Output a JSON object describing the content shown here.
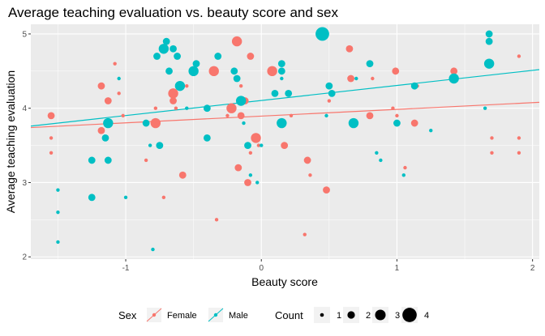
{
  "chart_data": {
    "type": "scatter",
    "title": "Average teaching evaluation vs. beauty score and sex",
    "xlabel": "Beauty score",
    "ylabel": "Average teaching evaluation",
    "xlim": [
      -1.7,
      2.05
    ],
    "ylim": [
      1.97,
      5.13
    ],
    "xticks": [
      -1,
      0,
      1,
      2
    ],
    "xtick_labels": [
      "-1",
      "0",
      "1",
      "2"
    ],
    "yticks": [
      2,
      3,
      4,
      5
    ],
    "ytick_labels": [
      "2",
      "3",
      "4",
      "5"
    ],
    "grid": true,
    "background": "#ebebeb",
    "legend": {
      "position": "bottom",
      "sex_title": "Sex",
      "sex_entries": [
        {
          "label": "Female",
          "color": "#F8766D"
        },
        {
          "label": "Male",
          "color": "#00BFC4"
        }
      ],
      "count_title": "Count",
      "count_entries": [
        {
          "label": "1",
          "count": 1
        },
        {
          "label": "2",
          "count": 2
        },
        {
          "label": "3",
          "count": 3
        },
        {
          "label": "4",
          "count": 4
        }
      ]
    },
    "series": [
      {
        "name": "Female",
        "color": "#F8766D",
        "trend": {
          "x": [
            -1.7,
            2.05
          ],
          "y": [
            3.74,
            4.08
          ]
        },
        "points": [
          {
            "x": -1.55,
            "y": 3.9,
            "count": 2
          },
          {
            "x": -1.55,
            "y": 3.6,
            "count": 1
          },
          {
            "x": -1.55,
            "y": 3.4,
            "count": 1
          },
          {
            "x": -1.18,
            "y": 4.3,
            "count": 2
          },
          {
            "x": -1.18,
            "y": 3.7,
            "count": 2
          },
          {
            "x": -1.13,
            "y": 4.1,
            "count": 2
          },
          {
            "x": -1.08,
            "y": 4.6,
            "count": 1
          },
          {
            "x": -1.05,
            "y": 4.2,
            "count": 1
          },
          {
            "x": -1.02,
            "y": 3.9,
            "count": 1
          },
          {
            "x": -0.85,
            "y": 3.3,
            "count": 1
          },
          {
            "x": -0.78,
            "y": 3.8,
            "count": 3
          },
          {
            "x": -0.78,
            "y": 4.0,
            "count": 1
          },
          {
            "x": -0.75,
            "y": 3.5,
            "count": 1
          },
          {
            "x": -0.72,
            "y": 2.8,
            "count": 1
          },
          {
            "x": -0.65,
            "y": 4.2,
            "count": 3
          },
          {
            "x": -0.65,
            "y": 4.1,
            "count": 2
          },
          {
            "x": -0.63,
            "y": 4.0,
            "count": 1
          },
          {
            "x": -0.58,
            "y": 3.1,
            "count": 2
          },
          {
            "x": -0.55,
            "y": 4.3,
            "count": 1
          },
          {
            "x": -0.35,
            "y": 4.5,
            "count": 3
          },
          {
            "x": -0.33,
            "y": 2.5,
            "count": 1
          },
          {
            "x": -0.25,
            "y": 3.9,
            "count": 1
          },
          {
            "x": -0.22,
            "y": 4.0,
            "count": 3
          },
          {
            "x": -0.18,
            "y": 4.9,
            "count": 3
          },
          {
            "x": -0.17,
            "y": 3.2,
            "count": 2
          },
          {
            "x": -0.15,
            "y": 3.9,
            "count": 2
          },
          {
            "x": -0.15,
            "y": 4.3,
            "count": 1
          },
          {
            "x": -0.12,
            "y": 4.1,
            "count": 2
          },
          {
            "x": -0.1,
            "y": 3.0,
            "count": 2
          },
          {
            "x": -0.08,
            "y": 3.4,
            "count": 1
          },
          {
            "x": -0.08,
            "y": 4.7,
            "count": 2
          },
          {
            "x": -0.04,
            "y": 3.6,
            "count": 3
          },
          {
            "x": -0.02,
            "y": 3.5,
            "count": 1
          },
          {
            "x": 0.08,
            "y": 4.5,
            "count": 3
          },
          {
            "x": 0.15,
            "y": 3.8,
            "count": 1
          },
          {
            "x": 0.17,
            "y": 3.5,
            "count": 2
          },
          {
            "x": 0.22,
            "y": 3.9,
            "count": 1
          },
          {
            "x": 0.32,
            "y": 2.3,
            "count": 1
          },
          {
            "x": 0.34,
            "y": 3.3,
            "count": 2
          },
          {
            "x": 0.36,
            "y": 3.1,
            "count": 1
          },
          {
            "x": 0.48,
            "y": 2.9,
            "count": 2
          },
          {
            "x": 0.5,
            "y": 4.1,
            "count": 1
          },
          {
            "x": 0.65,
            "y": 4.8,
            "count": 2
          },
          {
            "x": 0.66,
            "y": 4.4,
            "count": 2
          },
          {
            "x": 0.8,
            "y": 3.9,
            "count": 2
          },
          {
            "x": 0.82,
            "y": 4.4,
            "count": 1
          },
          {
            "x": 0.97,
            "y": 4.0,
            "count": 1
          },
          {
            "x": 0.99,
            "y": 4.5,
            "count": 2
          },
          {
            "x": 1.0,
            "y": 3.9,
            "count": 1
          },
          {
            "x": 1.06,
            "y": 3.2,
            "count": 1
          },
          {
            "x": 1.13,
            "y": 3.8,
            "count": 2
          },
          {
            "x": 1.15,
            "y": 4.3,
            "count": 1
          },
          {
            "x": 1.42,
            "y": 4.5,
            "count": 2
          },
          {
            "x": 1.42,
            "y": 4.4,
            "count": 2
          },
          {
            "x": 1.7,
            "y": 4.6,
            "count": 1
          },
          {
            "x": 1.7,
            "y": 3.6,
            "count": 1
          },
          {
            "x": 1.7,
            "y": 3.4,
            "count": 1
          },
          {
            "x": 1.9,
            "y": 4.7,
            "count": 1
          },
          {
            "x": 1.9,
            "y": 3.6,
            "count": 1
          },
          {
            "x": 1.9,
            "y": 3.4,
            "count": 1
          }
        ]
      },
      {
        "name": "Male",
        "color": "#00BFC4",
        "trend": {
          "x": [
            -1.7,
            2.05
          ],
          "y": [
            3.76,
            4.52
          ]
        },
        "points": [
          {
            "x": -1.5,
            "y": 2.9,
            "count": 1
          },
          {
            "x": -1.5,
            "y": 2.6,
            "count": 1
          },
          {
            "x": -1.5,
            "y": 2.2,
            "count": 1
          },
          {
            "x": -1.25,
            "y": 3.3,
            "count": 2
          },
          {
            "x": -1.25,
            "y": 2.8,
            "count": 2
          },
          {
            "x": -1.15,
            "y": 3.6,
            "count": 2
          },
          {
            "x": -1.13,
            "y": 3.8,
            "count": 3
          },
          {
            "x": -1.13,
            "y": 3.3,
            "count": 2
          },
          {
            "x": -1.05,
            "y": 4.4,
            "count": 1
          },
          {
            "x": -1.0,
            "y": 2.8,
            "count": 1
          },
          {
            "x": -0.85,
            "y": 3.8,
            "count": 2
          },
          {
            "x": -0.82,
            "y": 3.5,
            "count": 1
          },
          {
            "x": -0.8,
            "y": 2.1,
            "count": 1
          },
          {
            "x": -0.77,
            "y": 4.7,
            "count": 2
          },
          {
            "x": -0.75,
            "y": 3.5,
            "count": 2
          },
          {
            "x": -0.72,
            "y": 4.8,
            "count": 3
          },
          {
            "x": -0.7,
            "y": 4.9,
            "count": 2
          },
          {
            "x": -0.68,
            "y": 4.5,
            "count": 2
          },
          {
            "x": -0.65,
            "y": 4.8,
            "count": 2
          },
          {
            "x": -0.62,
            "y": 4.7,
            "count": 2
          },
          {
            "x": -0.6,
            "y": 4.3,
            "count": 3
          },
          {
            "x": -0.55,
            "y": 4.0,
            "count": 1
          },
          {
            "x": -0.5,
            "y": 4.5,
            "count": 3
          },
          {
            "x": -0.48,
            "y": 4.6,
            "count": 2
          },
          {
            "x": -0.4,
            "y": 3.6,
            "count": 2
          },
          {
            "x": -0.4,
            "y": 4.0,
            "count": 2
          },
          {
            "x": -0.32,
            "y": 4.7,
            "count": 2
          },
          {
            "x": -0.2,
            "y": 4.5,
            "count": 2
          },
          {
            "x": -0.18,
            "y": 4.4,
            "count": 2
          },
          {
            "x": -0.15,
            "y": 4.1,
            "count": 3
          },
          {
            "x": -0.13,
            "y": 3.8,
            "count": 1
          },
          {
            "x": -0.1,
            "y": 3.5,
            "count": 2
          },
          {
            "x": -0.08,
            "y": 3.1,
            "count": 1
          },
          {
            "x": -0.03,
            "y": 3.0,
            "count": 1
          },
          {
            "x": 0.0,
            "y": 3.5,
            "count": 1
          },
          {
            "x": 0.1,
            "y": 4.2,
            "count": 2
          },
          {
            "x": 0.15,
            "y": 4.5,
            "count": 2
          },
          {
            "x": 0.15,
            "y": 4.6,
            "count": 2
          },
          {
            "x": 0.15,
            "y": 4.4,
            "count": 1
          },
          {
            "x": 0.2,
            "y": 4.2,
            "count": 2
          },
          {
            "x": 0.15,
            "y": 3.8,
            "count": 3
          },
          {
            "x": 0.45,
            "y": 5.0,
            "count": 4
          },
          {
            "x": 0.5,
            "y": 4.3,
            "count": 2
          },
          {
            "x": 0.52,
            "y": 4.2,
            "count": 2
          },
          {
            "x": 0.48,
            "y": 3.9,
            "count": 1
          },
          {
            "x": 0.68,
            "y": 3.8,
            "count": 3
          },
          {
            "x": 0.7,
            "y": 4.4,
            "count": 1
          },
          {
            "x": 0.8,
            "y": 4.6,
            "count": 2
          },
          {
            "x": 0.85,
            "y": 3.4,
            "count": 1
          },
          {
            "x": 0.88,
            "y": 3.3,
            "count": 1
          },
          {
            "x": 1.0,
            "y": 3.8,
            "count": 2
          },
          {
            "x": 1.05,
            "y": 3.1,
            "count": 1
          },
          {
            "x": 1.13,
            "y": 4.3,
            "count": 2
          },
          {
            "x": 1.25,
            "y": 3.7,
            "count": 1
          },
          {
            "x": 1.42,
            "y": 4.4,
            "count": 3
          },
          {
            "x": 1.68,
            "y": 5.0,
            "count": 2
          },
          {
            "x": 1.68,
            "y": 4.9,
            "count": 2
          },
          {
            "x": 1.68,
            "y": 4.6,
            "count": 3
          },
          {
            "x": 1.65,
            "y": 4.0,
            "count": 1
          }
        ]
      }
    ]
  }
}
